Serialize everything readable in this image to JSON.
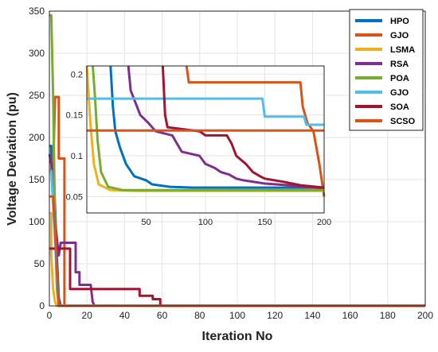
{
  "chart_data": [
    {
      "type": "line",
      "title": "",
      "xlabel": "Iteration No",
      "ylabel": "Voltage Deviation (pu)",
      "xlim": [
        0,
        200
      ],
      "ylim": [
        0,
        350
      ],
      "xticks": [
        0,
        20,
        40,
        60,
        80,
        100,
        120,
        140,
        160,
        180,
        200
      ],
      "yticks": [
        0,
        50,
        100,
        150,
        200,
        250,
        300,
        350
      ],
      "grid": true,
      "legend_position": "top-right",
      "series": [
        {
          "name": "HPO",
          "color": "#0072BD",
          "points": [
            [
              0,
              190
            ],
            [
              1,
              190
            ],
            [
              1,
              170
            ],
            [
              2,
              160
            ],
            [
              3,
              120
            ],
            [
              4,
              60
            ],
            [
              5,
              10
            ],
            [
              6,
              0.1
            ],
            [
              200,
              0.06
            ]
          ]
        },
        {
          "name": "GJO",
          "color": "#D95319",
          "points": [
            [
              0,
              170
            ],
            [
              1,
              170
            ],
            [
              1,
              160
            ],
            [
              2,
              160
            ],
            [
              3,
              248
            ],
            [
              5,
              248
            ],
            [
              5,
              175
            ],
            [
              8,
              175
            ],
            [
              8,
              0.14
            ],
            [
              200,
              0.14
            ]
          ]
        },
        {
          "name": "LSMA",
          "color": "#EDB120",
          "points": [
            [
              0,
              110
            ],
            [
              1,
              110
            ],
            [
              1,
              60
            ],
            [
              2,
              20
            ],
            [
              3,
              5
            ],
            [
              4,
              0.06
            ],
            [
              200,
              0.06
            ]
          ]
        },
        {
          "name": "RSA",
          "color": "#7E2F8E",
          "points": [
            [
              0,
              180
            ],
            [
              2,
              160
            ],
            [
              3,
              100
            ],
            [
              5,
              60
            ],
            [
              6,
              75
            ],
            [
              14,
              75
            ],
            [
              14,
              40
            ],
            [
              16,
              40
            ],
            [
              16,
              25
            ],
            [
              22,
              25
            ],
            [
              23,
              5
            ],
            [
              24,
              0.08
            ],
            [
              200,
              0.06
            ]
          ]
        },
        {
          "name": "POA",
          "color": "#77AC30",
          "points": [
            [
              0,
              345
            ],
            [
              1,
              345
            ],
            [
              2,
              250
            ],
            [
              3,
              100
            ],
            [
              4,
              20
            ],
            [
              5,
              0.06
            ],
            [
              200,
              0.06
            ]
          ]
        },
        {
          "name": "GJO",
          "color": "#4DBEEE",
          "points": [
            [
              0,
              160
            ],
            [
              1,
              160
            ],
            [
              2,
              120
            ],
            [
              3,
              80
            ],
            [
              4,
              30
            ],
            [
              5,
              0.18
            ],
            [
              200,
              0.14
            ]
          ]
        },
        {
          "name": "SOA",
          "color": "#A2142F",
          "points": [
            [
              0,
              68
            ],
            [
              11,
              68
            ],
            [
              11,
              20
            ],
            [
              48,
              20
            ],
            [
              48,
              12
            ],
            [
              55,
              12
            ],
            [
              55,
              8
            ],
            [
              59,
              8
            ],
            [
              59,
              1
            ],
            [
              60,
              0.13
            ],
            [
              200,
              0.06
            ]
          ]
        },
        {
          "name": "SCSO",
          "color": "#D95319",
          "points": [
            [
              0,
              130
            ],
            [
              2,
              130
            ],
            [
              3,
              90
            ],
            [
              4,
              40
            ],
            [
              5,
              0.13
            ],
            [
              200,
              0.13
            ]
          ]
        }
      ]
    },
    {
      "type": "line",
      "title": "",
      "xlabel": "",
      "ylabel": "",
      "xlim": [
        0,
        200
      ],
      "ylim": [
        0.03,
        0.21
      ],
      "xticks": [
        50,
        100,
        150,
        200
      ],
      "yticks": [
        0.05,
        0.1,
        0.15,
        0.2
      ],
      "ytick_labels": [
        "0.05",
        "0.1",
        "0.15",
        "0.2"
      ],
      "grid": true,
      "series": [
        {
          "name": "HPO",
          "color": "#0072BD",
          "points": [
            [
              20,
              0.21
            ],
            [
              22,
              0.16
            ],
            [
              24,
              0.13
            ],
            [
              28,
              0.11
            ],
            [
              33,
              0.09
            ],
            [
              40,
              0.075
            ],
            [
              50,
              0.07
            ],
            [
              55,
              0.065
            ],
            [
              70,
              0.062
            ],
            [
              90,
              0.061
            ],
            [
              200,
              0.061
            ]
          ]
        },
        {
          "name": "GJO",
          "color": "#D95319",
          "points": [
            [
              84,
              0.21
            ],
            [
              86,
              0.19
            ],
            [
              180,
              0.19
            ],
            [
              182,
              0.16
            ],
            [
              186,
              0.14
            ],
            [
              191,
              0.13
            ],
            [
              196,
              0.09
            ],
            [
              200,
              0.05
            ]
          ]
        },
        {
          "name": "LSMA",
          "color": "#EDB120",
          "points": [
            [
              0,
              0.21
            ],
            [
              3,
              0.14
            ],
            [
              6,
              0.09
            ],
            [
              10,
              0.065
            ],
            [
              20,
              0.058
            ],
            [
              40,
              0.057
            ],
            [
              200,
              0.057
            ]
          ]
        },
        {
          "name": "RSA",
          "color": "#7E2F8E",
          "points": [
            [
              35,
              0.21
            ],
            [
              37,
              0.18
            ],
            [
              45,
              0.15
            ],
            [
              52,
              0.14
            ],
            [
              58,
              0.13
            ],
            [
              72,
              0.125
            ],
            [
              76,
              0.115
            ],
            [
              80,
              0.105
            ],
            [
              95,
              0.1
            ],
            [
              100,
              0.09
            ],
            [
              108,
              0.085
            ],
            [
              113,
              0.08
            ],
            [
              120,
              0.077
            ],
            [
              126,
              0.072
            ],
            [
              132,
              0.07
            ],
            [
              150,
              0.066
            ],
            [
              170,
              0.064
            ],
            [
              185,
              0.062
            ],
            [
              200,
              0.06
            ]
          ]
        },
        {
          "name": "POA",
          "color": "#77AC30",
          "points": [
            [
              5,
              0.21
            ],
            [
              7,
              0.17
            ],
            [
              9,
              0.12
            ],
            [
              12,
              0.08
            ],
            [
              18,
              0.062
            ],
            [
              30,
              0.058
            ],
            [
              200,
              0.058
            ]
          ]
        },
        {
          "name": "GJO",
          "color": "#4DBEEE",
          "points": [
            [
              0,
              0.17
            ],
            [
              148,
              0.17
            ],
            [
              150,
              0.148
            ],
            [
              183,
              0.148
            ],
            [
              185,
              0.138
            ],
            [
              200,
              0.138
            ]
          ]
        },
        {
          "name": "SOA",
          "color": "#A2142F",
          "points": [
            [
              64,
              0.21
            ],
            [
              66,
              0.15
            ],
            [
              68,
              0.135
            ],
            [
              95,
              0.13
            ],
            [
              100,
              0.125
            ],
            [
              118,
              0.125
            ],
            [
              122,
              0.115
            ],
            [
              126,
              0.1
            ],
            [
              134,
              0.09
            ],
            [
              140,
              0.08
            ],
            [
              146,
              0.075
            ],
            [
              150,
              0.072
            ],
            [
              166,
              0.068
            ],
            [
              180,
              0.064
            ],
            [
              200,
              0.061
            ]
          ]
        },
        {
          "name": "SCSO",
          "color": "#D95319",
          "points": [
            [
              0,
              0.131
            ],
            [
              200,
              0.131
            ]
          ]
        }
      ]
    }
  ]
}
